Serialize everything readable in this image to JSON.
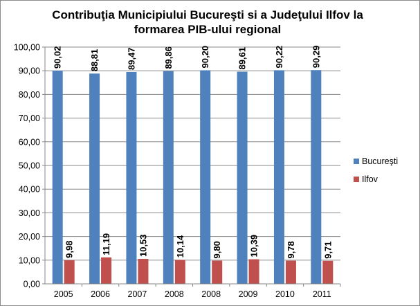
{
  "chart_data": {
    "type": "bar",
    "title_lines": [
      "Contribuţia Municipiului Bucureşti si a Judeţului Ilfov la",
      "formarea PIB-ului regional"
    ],
    "categories": [
      "2005",
      "2006",
      "2007",
      "2008",
      "2008",
      "2009",
      "2010",
      "2011"
    ],
    "series": [
      {
        "name": "Bucureşti",
        "color": "#4f81bd",
        "values": [
          90.02,
          88.81,
          89.47,
          89.86,
          90.2,
          89.61,
          90.22,
          90.29
        ],
        "labels": [
          "90,02",
          "88,81",
          "89,47",
          "89,86",
          "90,20",
          "89,61",
          "90,22",
          "90,29"
        ]
      },
      {
        "name": "Ilfov",
        "color": "#c0504d",
        "values": [
          9.98,
          11.19,
          10.53,
          10.14,
          9.8,
          10.39,
          9.78,
          9.71
        ],
        "labels": [
          "9,98",
          "11,19",
          "10,53",
          "10,14",
          "9,80",
          "10,39",
          "9,78",
          "9,71"
        ]
      }
    ],
    "y_ticks": [
      "0,00",
      "10,00",
      "20,00",
      "30,00",
      "40,00",
      "50,00",
      "60,00",
      "70,00",
      "80,00",
      "90,00",
      "100,00"
    ],
    "ylim": [
      0,
      100
    ],
    "y_step": 10,
    "grid": true,
    "legend_position": "right",
    "colors": {
      "gridline": "#878787",
      "axis": "#878787",
      "frame": "#8c8c8c"
    }
  }
}
